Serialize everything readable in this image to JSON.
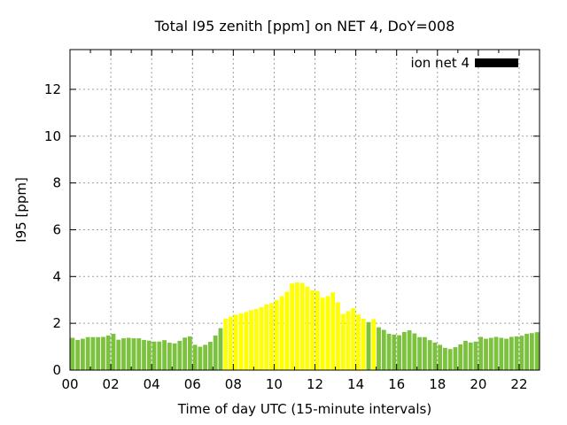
{
  "window": {
    "title": "Total I95 zenith [ppm] on NET 4, DoY=008"
  },
  "chart_data": {
    "type": "bar",
    "title": "Total I95 zenith [ppm] on NET 4, DoY=008",
    "xlabel": "Time of day UTC (15-minute intervals)",
    "ylabel": "I95 [ppm]",
    "legend": {
      "label": "ion net 4",
      "swatch_color": "#000000",
      "position": "top-right-inside"
    },
    "grid": true,
    "interval_minutes": 15,
    "xlim_hours": [
      0,
      23
    ],
    "ylim": [
      0,
      13.7
    ],
    "x_tick_labels": [
      "00",
      "02",
      "04",
      "06",
      "08",
      "10",
      "12",
      "14",
      "16",
      "18",
      "20",
      "22"
    ],
    "y_ticks": [
      0,
      2,
      4,
      6,
      8,
      10,
      12
    ],
    "colors": {
      "green": "#7cc23e",
      "yellow": "#ffff00",
      "frame": "#000000",
      "grid": "#9e9e9e",
      "background": "#ffffff"
    },
    "series": [
      {
        "name": "ion net 4",
        "times": [
          "00:00",
          "00:15",
          "00:30",
          "00:45",
          "01:00",
          "01:15",
          "01:30",
          "01:45",
          "02:00",
          "02:15",
          "02:30",
          "02:45",
          "03:00",
          "03:15",
          "03:30",
          "03:45",
          "04:00",
          "04:15",
          "04:30",
          "04:45",
          "05:00",
          "05:15",
          "05:30",
          "05:45",
          "06:00",
          "06:15",
          "06:30",
          "06:45",
          "07:00",
          "07:15",
          "07:30",
          "07:45",
          "08:00",
          "08:15",
          "08:30",
          "08:45",
          "09:00",
          "09:15",
          "09:30",
          "09:45",
          "10:00",
          "10:15",
          "10:30",
          "10:45",
          "11:00",
          "11:15",
          "11:30",
          "11:45",
          "12:00",
          "12:15",
          "12:30",
          "12:45",
          "13:00",
          "13:15",
          "13:30",
          "13:45",
          "14:00",
          "14:15",
          "14:30",
          "14:45",
          "15:00",
          "15:15",
          "15:30",
          "15:45",
          "16:00",
          "16:15",
          "16:30",
          "16:45",
          "17:00",
          "17:15",
          "17:30",
          "17:45",
          "18:00",
          "18:15",
          "18:30",
          "18:45",
          "19:00",
          "19:15",
          "19:30",
          "19:45",
          "20:00",
          "20:15",
          "20:30",
          "20:45",
          "21:00",
          "21:15",
          "21:30",
          "21:45",
          "22:00",
          "22:15",
          "22:30",
          "22:45"
        ],
        "values": [
          1.38,
          1.29,
          1.34,
          1.41,
          1.41,
          1.41,
          1.42,
          1.48,
          1.55,
          1.3,
          1.36,
          1.38,
          1.36,
          1.36,
          1.29,
          1.26,
          1.22,
          1.22,
          1.28,
          1.17,
          1.14,
          1.25,
          1.39,
          1.44,
          1.08,
          1.0,
          1.08,
          1.21,
          1.48,
          1.79,
          2.2,
          2.29,
          2.37,
          2.42,
          2.48,
          2.56,
          2.61,
          2.69,
          2.81,
          2.86,
          2.99,
          3.16,
          3.35,
          3.7,
          3.75,
          3.73,
          3.57,
          3.41,
          3.37,
          3.09,
          3.16,
          3.32,
          2.9,
          2.4,
          2.52,
          2.65,
          2.38,
          2.2,
          2.05,
          2.18,
          1.83,
          1.72,
          1.55,
          1.52,
          1.49,
          1.63,
          1.7,
          1.57,
          1.41,
          1.41,
          1.28,
          1.18,
          1.08,
          0.95,
          0.9,
          0.98,
          1.1,
          1.25,
          1.18,
          1.22,
          1.42,
          1.34,
          1.38,
          1.42,
          1.38,
          1.34,
          1.42,
          1.44,
          1.47,
          1.55,
          1.58,
          1.62
        ],
        "levels": [
          "green",
          "green",
          "green",
          "green",
          "green",
          "green",
          "green",
          "green",
          "green",
          "green",
          "green",
          "green",
          "green",
          "green",
          "green",
          "green",
          "green",
          "green",
          "green",
          "green",
          "green",
          "green",
          "green",
          "green",
          "green",
          "green",
          "green",
          "green",
          "green",
          "green",
          "yellow",
          "yellow",
          "yellow",
          "yellow",
          "yellow",
          "yellow",
          "yellow",
          "yellow",
          "yellow",
          "yellow",
          "yellow",
          "yellow",
          "yellow",
          "yellow",
          "yellow",
          "yellow",
          "yellow",
          "yellow",
          "yellow",
          "yellow",
          "yellow",
          "yellow",
          "yellow",
          "yellow",
          "yellow",
          "yellow",
          "yellow",
          "yellow",
          "green",
          "yellow",
          "green",
          "green",
          "green",
          "green",
          "green",
          "green",
          "green",
          "green",
          "green",
          "green",
          "green",
          "green",
          "green",
          "green",
          "green",
          "green",
          "green",
          "green",
          "green",
          "green",
          "green",
          "green",
          "green",
          "green",
          "green",
          "green",
          "green",
          "green",
          "green",
          "green",
          "green",
          "green"
        ]
      }
    ]
  }
}
